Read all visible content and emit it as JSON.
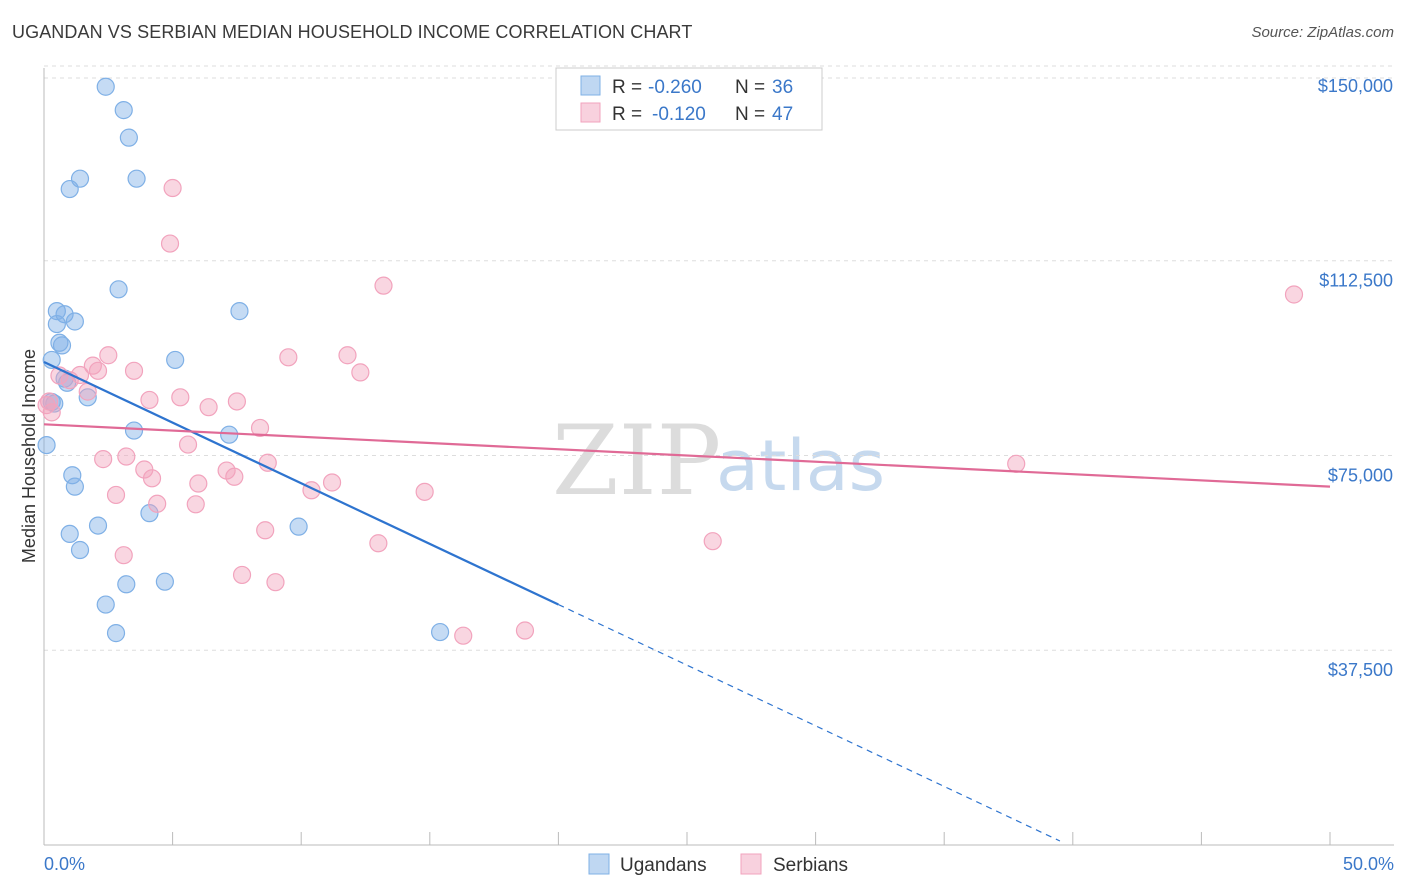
{
  "header": {
    "title": "UGANDAN VS SERBIAN MEDIAN HOUSEHOLD INCOME CORRELATION CHART",
    "source": "Source: ZipAtlas.com"
  },
  "watermark": {
    "zip": "ZIP",
    "atlas": "atlas"
  },
  "legend": {
    "r_label": "R =",
    "n_label": "N =",
    "rows": [
      {
        "r": "-0.260",
        "n": "36",
        "color": "#7fb0e6"
      },
      {
        "r": "-0.120",
        "n": "47",
        "color": "#f2a3bd"
      }
    ]
  },
  "chart_data": {
    "type": "scatter",
    "title": "UGANDAN VS SERBIAN MEDIAN HOUSEHOLD INCOME CORRELATION CHART",
    "xlabel": "",
    "ylabel": "Median Household Income",
    "xlim": [
      0,
      50
    ],
    "ylim": [
      0,
      155000
    ],
    "x_tick_labels": {
      "left": "0.0%",
      "right": "50.0%"
    },
    "y_ticks": [
      {
        "value": 37500,
        "label": "$37,500"
      },
      {
        "value": 75000,
        "label": "$75,000"
      },
      {
        "value": 112500,
        "label": "$112,500"
      },
      {
        "value": 150000,
        "label": "$150,000"
      }
    ],
    "grid": true,
    "series": [
      {
        "name": "Ugandans",
        "color": "#7fb0e6",
        "line_color": "#2e74cf",
        "trend": {
          "x_start": 0,
          "y_start": 93000,
          "x_solid_end": 20,
          "x_dash_end": 39.5,
          "slope": -2335
        },
        "points": [
          [
            2.4,
            146000
          ],
          [
            3.1,
            141500
          ],
          [
            3.3,
            136200
          ],
          [
            1.4,
            128300
          ],
          [
            1.0,
            126300
          ],
          [
            3.6,
            128300
          ],
          [
            2.9,
            107000
          ],
          [
            7.6,
            102800
          ],
          [
            0.5,
            102800
          ],
          [
            0.8,
            102200
          ],
          [
            1.2,
            100800
          ],
          [
            0.5,
            100300
          ],
          [
            0.6,
            96700
          ],
          [
            0.7,
            96200
          ],
          [
            0.3,
            93400
          ],
          [
            5.1,
            93400
          ],
          [
            0.8,
            89800
          ],
          [
            0.9,
            89000
          ],
          [
            0.3,
            85300
          ],
          [
            0.4,
            85000
          ],
          [
            1.7,
            86200
          ],
          [
            3.5,
            79800
          ],
          [
            7.2,
            79000
          ],
          [
            0.1,
            77000
          ],
          [
            1.1,
            71200
          ],
          [
            1.2,
            69000
          ],
          [
            4.1,
            63900
          ],
          [
            2.1,
            61500
          ],
          [
            9.9,
            61300
          ],
          [
            1.0,
            59900
          ],
          [
            1.4,
            56800
          ],
          [
            3.2,
            50200
          ],
          [
            4.7,
            50700
          ],
          [
            2.4,
            46300
          ],
          [
            2.8,
            40800
          ],
          [
            15.4,
            41000
          ]
        ]
      },
      {
        "name": "Serbians",
        "color": "#f2a3bd",
        "line_color": "#e06a96",
        "trend": {
          "x_start": 0,
          "y_start": 81000,
          "x_end": 50,
          "y_end": 69000
        },
        "points": [
          [
            5.0,
            126500
          ],
          [
            4.9,
            115800
          ],
          [
            13.2,
            107700
          ],
          [
            48.6,
            106000
          ],
          [
            0.2,
            85400
          ],
          [
            0.6,
            90400
          ],
          [
            1.0,
            89500
          ],
          [
            1.4,
            90500
          ],
          [
            1.9,
            92300
          ],
          [
            2.1,
            91300
          ],
          [
            2.5,
            94300
          ],
          [
            3.5,
            91300
          ],
          [
            9.5,
            93900
          ],
          [
            11.8,
            94300
          ],
          [
            12.3,
            91000
          ],
          [
            1.7,
            87300
          ],
          [
            4.1,
            85700
          ],
          [
            5.3,
            86200
          ],
          [
            6.4,
            84300
          ],
          [
            7.5,
            85400
          ],
          [
            8.4,
            80300
          ],
          [
            5.6,
            77100
          ],
          [
            2.3,
            74300
          ],
          [
            3.2,
            74800
          ],
          [
            3.9,
            72300
          ],
          [
            7.1,
            72100
          ],
          [
            8.7,
            73600
          ],
          [
            4.2,
            70600
          ],
          [
            6.0,
            69600
          ],
          [
            7.4,
            70900
          ],
          [
            10.4,
            68300
          ],
          [
            11.2,
            69800
          ],
          [
            14.8,
            68000
          ],
          [
            37.8,
            73400
          ],
          [
            2.8,
            67400
          ],
          [
            4.4,
            65700
          ],
          [
            5.9,
            65600
          ],
          [
            8.6,
            60600
          ],
          [
            13.0,
            58100
          ],
          [
            26.0,
            58500
          ],
          [
            3.1,
            55800
          ],
          [
            7.7,
            52000
          ],
          [
            9.0,
            50600
          ],
          [
            16.3,
            40300
          ],
          [
            18.7,
            41300
          ],
          [
            0.1,
            84700
          ],
          [
            0.3,
            83300
          ]
        ]
      }
    ]
  },
  "bottom_legend": [
    {
      "label": "Ugandans",
      "color": "#7fb0e6"
    },
    {
      "label": "Serbians",
      "color": "#f2a3bd"
    }
  ]
}
